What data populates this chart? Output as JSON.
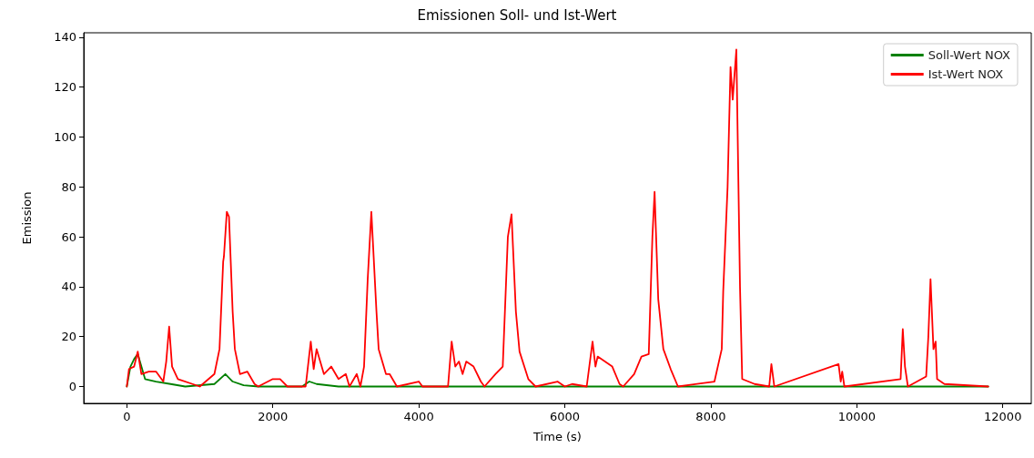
{
  "chart_data": {
    "type": "line",
    "title": "Emissionen Soll- und Ist-Wert",
    "xlabel": "Time (s)",
    "ylabel": "Emission",
    "xlim": [
      -590,
      12390
    ],
    "xticks": [
      0,
      2000,
      4000,
      6000,
      8000,
      10000,
      12000
    ],
    "ylim": [
      -6.75,
      141.75
    ],
    "yticks": [
      0,
      20,
      40,
      60,
      80,
      100,
      120,
      140
    ],
    "grid": false,
    "legend": "top right",
    "marker": "none",
    "line_style": "solid",
    "series": [
      {
        "name": "Soll-Wert NOX",
        "color": "#008000",
        "x": [
          0,
          50,
          100,
          150,
          250,
          400,
          600,
          800,
          1200,
          1350,
          1450,
          1600,
          1800,
          2400,
          2500,
          2600,
          2900,
          11800
        ],
        "values": [
          0,
          8,
          11,
          13,
          3,
          2,
          1,
          0,
          1,
          5,
          2,
          0.5,
          0,
          0,
          2,
          1,
          0,
          0
        ]
      },
      {
        "name": "Ist-Wert NOX",
        "color": "#ff0000",
        "x": [
          0,
          30,
          100,
          150,
          200,
          300,
          400,
          500,
          540,
          580,
          620,
          700,
          900,
          1000,
          1200,
          1270,
          1320,
          1330,
          1370,
          1400,
          1450,
          1480,
          1550,
          1650,
          1750,
          1800,
          2000,
          2100,
          2200,
          2450,
          2520,
          2560,
          2600,
          2700,
          2800,
          2900,
          3000,
          3050,
          3150,
          3200,
          3250,
          3300,
          3350,
          3420,
          3450,
          3550,
          3600,
          3700,
          4000,
          4050,
          4400,
          4450,
          4500,
          4550,
          4600,
          4650,
          4750,
          4850,
          4900,
          5050,
          5150,
          5220,
          5270,
          5330,
          5380,
          5500,
          5600,
          5900,
          6000,
          6100,
          6300,
          6380,
          6420,
          6450,
          6550,
          6650,
          6750,
          6800,
          6950,
          7050,
          7150,
          7200,
          7230,
          7280,
          7350,
          7450,
          7550,
          8050,
          8150,
          8170,
          8230,
          8270,
          8300,
          8350,
          8400,
          8430,
          8600,
          8800,
          8830,
          8870,
          9750,
          9780,
          9800,
          9830,
          10600,
          10630,
          10660,
          10700,
          10950,
          10980,
          11010,
          11050,
          11080,
          11100,
          11200,
          11800
        ],
        "values": [
          0,
          7,
          8,
          14,
          5,
          6,
          6,
          2,
          10,
          24,
          8,
          3,
          1,
          0,
          5,
          15,
          50,
          52,
          70,
          68,
          30,
          15,
          5,
          6,
          1,
          0,
          3,
          3,
          0,
          0,
          18,
          7,
          15,
          5,
          8,
          3,
          5,
          0,
          5,
          0,
          8,
          43,
          70,
          30,
          15,
          5,
          5,
          0,
          2,
          0,
          0,
          18,
          8,
          10,
          5,
          10,
          8,
          2,
          0,
          5,
          8,
          60,
          69,
          30,
          14,
          3,
          0,
          2,
          0,
          1,
          0,
          18,
          8,
          12,
          10,
          8,
          1,
          0,
          5,
          12,
          13,
          60,
          78,
          35,
          15,
          7,
          0,
          2,
          15,
          38,
          80,
          128,
          115,
          135,
          40,
          3,
          1,
          0,
          9,
          0,
          9,
          2,
          6,
          0,
          3,
          23,
          8,
          0,
          4,
          20,
          43,
          15,
          18,
          3,
          1,
          0
        ]
      }
    ]
  }
}
